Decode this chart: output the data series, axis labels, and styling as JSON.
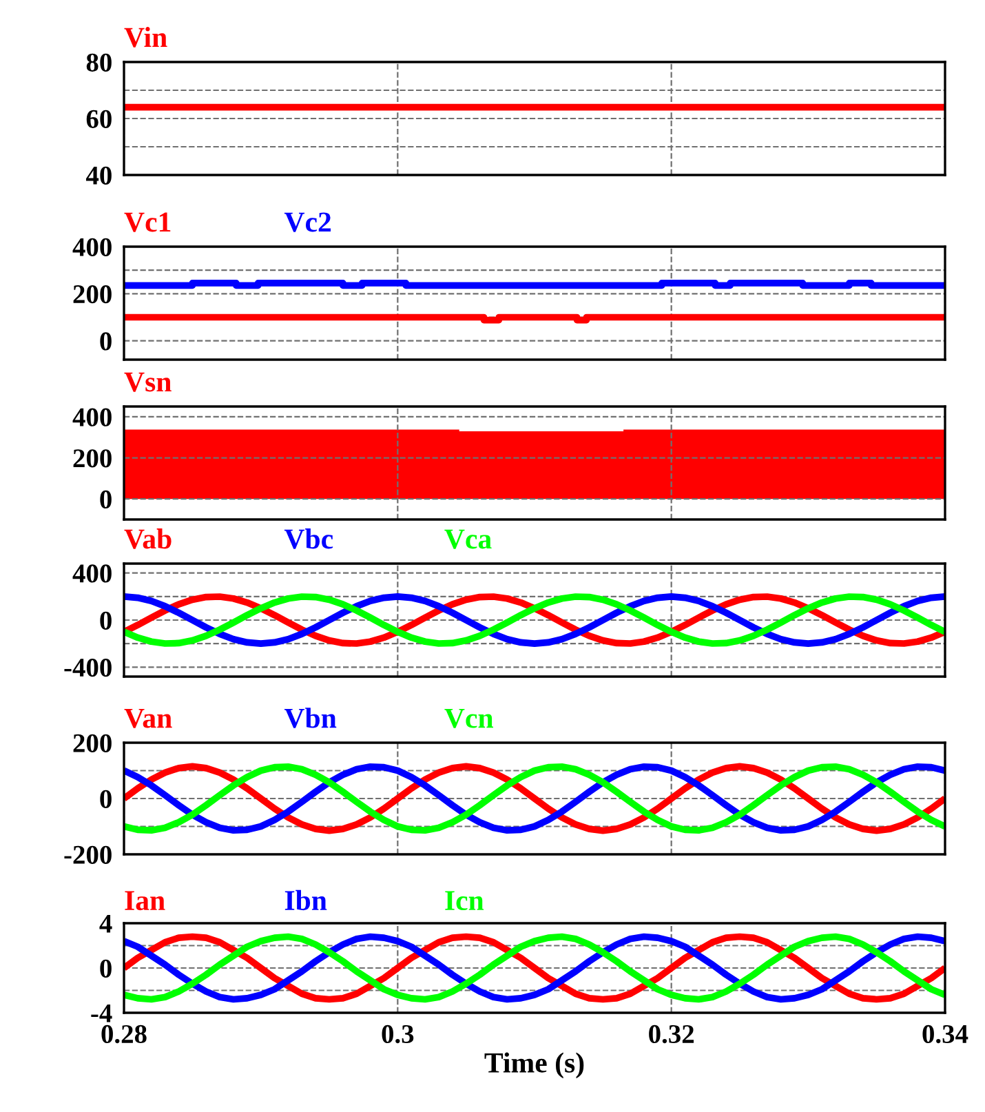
{
  "chart_data": [
    {
      "type": "line",
      "xlim": [
        0.28,
        0.34
      ],
      "xticks": [
        0.28,
        0.3,
        0.32,
        0.34
      ],
      "ylim": [
        40,
        80
      ],
      "yticks": [
        40,
        {
          "value": 50,
          "label": null
        },
        60,
        {
          "value": 70,
          "label": null
        },
        80
      ],
      "grid": true,
      "legend": "top left",
      "tick_labels": "y",
      "series": [
        {
          "name": "Vin",
          "color": "#ff0000",
          "x": [
            0.28,
            0.34
          ],
          "values": [
            64,
            64
          ]
        }
      ]
    },
    {
      "type": "line",
      "xlim": [
        0.28,
        0.34
      ],
      "xticks": [
        0.28,
        0.3,
        0.32,
        0.34
      ],
      "ylim": [
        -80,
        400
      ],
      "yticks": [
        0,
        {
          "value": 100,
          "label": null
        },
        200,
        {
          "value": 300,
          "label": null
        },
        400
      ],
      "grid": true,
      "legend": "top left",
      "tick_labels": "y",
      "series": [
        {
          "name": "Vc1",
          "color": "#ff0000",
          "x": [
            0.28,
            0.3063,
            0.3063,
            0.3074,
            0.3074,
            0.3131,
            0.3131,
            0.3138,
            0.3138,
            0.34
          ],
          "values": [
            100,
            100,
            88,
            88,
            100,
            100,
            88,
            88,
            100,
            100
          ]
        },
        {
          "name": "Vc2",
          "color": "#0000ff",
          "x": [
            0.28,
            0.285,
            0.285,
            0.2882,
            0.2882,
            0.2898,
            0.2898,
            0.296,
            0.296,
            0.2974,
            0.2974,
            0.3006,
            0.3006,
            0.3193,
            0.3193,
            0.3232,
            0.3232,
            0.3243,
            0.3243,
            0.3296,
            0.3296,
            0.333,
            0.333,
            0.3346,
            0.3346,
            0.34
          ],
          "values": [
            235,
            235,
            245,
            245,
            235,
            235,
            245,
            245,
            235,
            235,
            245,
            245,
            235,
            235,
            245,
            245,
            235,
            235,
            245,
            245,
            235,
            235,
            245,
            245,
            235,
            235
          ]
        }
      ]
    },
    {
      "type": "area",
      "xlim": [
        0.28,
        0.34
      ],
      "xticks": [
        0.28,
        0.3,
        0.32,
        0.34
      ],
      "ylim": [
        -100,
        450
      ],
      "yticks": [
        0,
        200,
        400
      ],
      "grid": true,
      "legend": "top left",
      "tick_labels": "y",
      "series": [
        {
          "name": "Vsn",
          "color": "#ff0000",
          "x": [
            0.28,
            0.3045,
            0.3045,
            0.3165,
            0.3165,
            0.34
          ],
          "values": [
            338,
            338,
            329,
            329,
            338,
            338
          ]
        }
      ]
    },
    {
      "type": "line",
      "xlim": [
        0.28,
        0.34
      ],
      "xticks": [
        0.28,
        0.3,
        0.32,
        0.34
      ],
      "ylim": [
        -480,
        480
      ],
      "yticks": [
        -400,
        {
          "value": -200,
          "label": null
        },
        0,
        {
          "value": 200,
          "label": null
        },
        400
      ],
      "grid": true,
      "legend": "top left",
      "tick_labels": "y",
      "x": [
        0.28,
        0.281,
        0.282,
        0.283,
        0.284,
        0.285,
        0.286,
        0.287,
        0.288,
        0.289,
        0.29,
        0.291,
        0.292,
        0.293,
        0.294,
        0.295,
        0.296,
        0.297,
        0.298,
        0.299,
        0.3,
        0.301,
        0.302,
        0.303,
        0.304,
        0.305,
        0.306,
        0.307,
        0.308,
        0.309,
        0.31,
        0.311,
        0.312,
        0.313,
        0.314,
        0.315,
        0.316,
        0.317,
        0.318,
        0.319,
        0.32,
        0.321,
        0.322,
        0.323,
        0.324,
        0.325,
        0.326,
        0.327,
        0.328,
        0.329,
        0.33,
        0.331,
        0.332,
        0.333,
        0.334,
        0.335,
        0.336,
        0.337,
        0.338,
        0.339,
        0.34
      ],
      "series": [
        {
          "name": "Vab",
          "color": "#ff0000",
          "values": [
            -100,
            -42,
            21,
            81,
            134,
            173,
            196,
            199,
            183,
            149,
            100,
            42,
            -21,
            -81,
            -134,
            -173,
            -196,
            -199,
            -183,
            -149,
            -100,
            -42,
            21,
            81,
            134,
            173,
            196,
            199,
            183,
            149,
            100,
            42,
            -21,
            -81,
            -134,
            -173,
            -196,
            -199,
            -183,
            -149,
            -100,
            -42,
            21,
            81,
            134,
            173,
            196,
            199,
            183,
            149,
            100,
            42,
            -21,
            -81,
            -134,
            -173,
            -196,
            -199,
            -183,
            -149,
            -100
          ]
        },
        {
          "name": "Vbc",
          "color": "#0000ff",
          "values": [
            200,
            190,
            162,
            118,
            62,
            0,
            -62,
            -118,
            -162,
            -190,
            -200,
            -190,
            -162,
            -118,
            -62,
            0,
            62,
            118,
            162,
            190,
            200,
            190,
            162,
            118,
            62,
            0,
            -62,
            -118,
            -162,
            -190,
            -200,
            -190,
            -162,
            -118,
            -62,
            0,
            62,
            118,
            162,
            190,
            200,
            190,
            162,
            118,
            62,
            0,
            -62,
            -118,
            -162,
            -190,
            -200,
            -190,
            -162,
            -118,
            -62,
            0,
            62,
            118,
            162,
            190,
            200
          ]
        },
        {
          "name": "Vca",
          "color": "#00ff00",
          "values": [
            -100,
            -149,
            -183,
            -199,
            -196,
            -173,
            -134,
            -81,
            -21,
            42,
            100,
            149,
            183,
            199,
            196,
            173,
            134,
            81,
            21,
            -42,
            -100,
            -149,
            -183,
            -199,
            -196,
            -173,
            -134,
            -81,
            -21,
            42,
            100,
            149,
            183,
            199,
            196,
            173,
            134,
            81,
            21,
            -42,
            -100,
            -149,
            -183,
            -199,
            -196,
            -173,
            -134,
            -81,
            -21,
            42,
            100,
            149,
            183,
            199,
            196,
            173,
            134,
            81,
            21,
            -42,
            -100
          ]
        }
      ]
    },
    {
      "type": "line",
      "xlim": [
        0.28,
        0.34
      ],
      "xticks": [
        0.28,
        0.3,
        0.32,
        0.34
      ],
      "ylim": [
        -200,
        200
      ],
      "yticks": [
        -200,
        {
          "value": -100,
          "label": null
        },
        0,
        {
          "value": 100,
          "label": null
        },
        200
      ],
      "grid": true,
      "legend": "top left",
      "tick_labels": "y",
      "x": [
        0.28,
        0.281,
        0.282,
        0.283,
        0.284,
        0.285,
        0.286,
        0.287,
        0.288,
        0.289,
        0.29,
        0.291,
        0.292,
        0.293,
        0.294,
        0.295,
        0.296,
        0.297,
        0.298,
        0.299,
        0.3,
        0.301,
        0.302,
        0.303,
        0.304,
        0.305,
        0.306,
        0.307,
        0.308,
        0.309,
        0.31,
        0.311,
        0.312,
        0.313,
        0.314,
        0.315,
        0.316,
        0.317,
        0.318,
        0.319,
        0.32,
        0.321,
        0.322,
        0.323,
        0.324,
        0.325,
        0.326,
        0.327,
        0.328,
        0.329,
        0.33,
        0.331,
        0.332,
        0.333,
        0.334,
        0.335,
        0.336,
        0.337,
        0.338,
        0.339,
        0.34
      ],
      "series": [
        {
          "name": "Van",
          "color": "#ff0000",
          "values": [
            0,
            36,
            68,
            93,
            109,
            115,
            109,
            93,
            68,
            36,
            0,
            -36,
            -68,
            -93,
            -109,
            -115,
            -109,
            -93,
            -68,
            -36,
            0,
            36,
            68,
            93,
            109,
            115,
            109,
            93,
            68,
            36,
            0,
            -36,
            -68,
            -93,
            -109,
            -115,
            -109,
            -93,
            -68,
            -36,
            0,
            36,
            68,
            93,
            109,
            115,
            109,
            93,
            68,
            36,
            0,
            -36,
            -68,
            -93,
            -109,
            -115,
            -109,
            -93,
            -68,
            -36,
            0
          ]
        },
        {
          "name": "Vbn",
          "color": "#0000ff",
          "values": [
            100,
            77,
            47,
            12,
            -24,
            -58,
            -85,
            -105,
            -114,
            -112,
            -100,
            -77,
            -47,
            -12,
            24,
            58,
            85,
            105,
            114,
            112,
            100,
            77,
            47,
            12,
            -24,
            -58,
            -85,
            -105,
            -114,
            -112,
            -100,
            -77,
            -47,
            -12,
            24,
            58,
            85,
            105,
            114,
            112,
            100,
            77,
            47,
            12,
            -24,
            -58,
            -85,
            -105,
            -114,
            -112,
            -100,
            -77,
            -47,
            -12,
            24,
            58,
            85,
            105,
            114,
            112,
            100
          ]
        },
        {
          "name": "Vcn",
          "color": "#00ff00",
          "values": [
            -100,
            -112,
            -114,
            -105,
            -85,
            -58,
            -24,
            12,
            47,
            77,
            100,
            112,
            114,
            105,
            85,
            58,
            24,
            -12,
            -47,
            -77,
            -100,
            -112,
            -114,
            -105,
            -85,
            -58,
            -24,
            12,
            47,
            77,
            100,
            112,
            114,
            105,
            85,
            58,
            24,
            -12,
            -47,
            -77,
            -100,
            -112,
            -114,
            -105,
            -85,
            -58,
            -24,
            12,
            47,
            77,
            100,
            112,
            114,
            105,
            85,
            58,
            24,
            -12,
            -47,
            -77,
            -100
          ]
        }
      ]
    },
    {
      "type": "line",
      "xlim": [
        0.28,
        0.34
      ],
      "xticks": [
        0.28,
        0.3,
        0.32,
        0.34
      ],
      "ylim": [
        -4,
        4
      ],
      "yticks": [
        -4,
        {
          "value": -2,
          "label": null
        },
        0,
        {
          "value": 2,
          "label": null
        },
        4
      ],
      "grid": true,
      "legend": "top left",
      "xlabel": "Time (s)",
      "x": [
        0.28,
        0.281,
        0.282,
        0.283,
        0.284,
        0.285,
        0.286,
        0.287,
        0.288,
        0.289,
        0.29,
        0.291,
        0.292,
        0.293,
        0.294,
        0.295,
        0.296,
        0.297,
        0.298,
        0.299,
        0.3,
        0.301,
        0.302,
        0.303,
        0.304,
        0.305,
        0.306,
        0.307,
        0.308,
        0.309,
        0.31,
        0.311,
        0.312,
        0.313,
        0.314,
        0.315,
        0.316,
        0.317,
        0.318,
        0.319,
        0.32,
        0.321,
        0.322,
        0.323,
        0.324,
        0.325,
        0.326,
        0.327,
        0.328,
        0.329,
        0.33,
        0.331,
        0.332,
        0.333,
        0.334,
        0.335,
        0.336,
        0.337,
        0.338,
        0.339,
        0.34
      ],
      "series": [
        {
          "name": "Ian",
          "color": "#ff0000",
          "values": [
            0,
            0.9,
            1.6,
            2.3,
            2.7,
            2.8,
            2.7,
            2.3,
            1.6,
            0.9,
            0,
            -0.9,
            -1.6,
            -2.3,
            -2.7,
            -2.8,
            -2.7,
            -2.3,
            -1.6,
            -0.9,
            0,
            0.9,
            1.6,
            2.3,
            2.7,
            2.8,
            2.7,
            2.3,
            1.6,
            0.9,
            0,
            -0.9,
            -1.6,
            -2.3,
            -2.7,
            -2.8,
            -2.7,
            -2.3,
            -1.6,
            -0.9,
            0,
            0.9,
            1.6,
            2.3,
            2.7,
            2.8,
            2.7,
            2.3,
            1.6,
            0.9,
            0,
            -0.9,
            -1.6,
            -2.3,
            -2.7,
            -2.8,
            -2.7,
            -2.3,
            -1.6,
            -0.9,
            0
          ]
        },
        {
          "name": "Ibn",
          "color": "#0000ff",
          "values": [
            2.4,
            1.9,
            1.1,
            0.3,
            -0.6,
            -1.4,
            -2.1,
            -2.6,
            -2.8,
            -2.7,
            -2.4,
            -1.9,
            -1.1,
            -0.3,
            0.6,
            1.4,
            2.1,
            2.6,
            2.8,
            2.7,
            2.4,
            1.9,
            1.1,
            0.3,
            -0.6,
            -1.4,
            -2.1,
            -2.6,
            -2.8,
            -2.7,
            -2.4,
            -1.9,
            -1.1,
            -0.3,
            0.6,
            1.4,
            2.1,
            2.6,
            2.8,
            2.7,
            2.4,
            1.9,
            1.1,
            0.3,
            -0.6,
            -1.4,
            -2.1,
            -2.6,
            -2.8,
            -2.7,
            -2.4,
            -1.9,
            -1.1,
            -0.3,
            0.6,
            1.4,
            2.1,
            2.6,
            2.8,
            2.7,
            2.4
          ]
        },
        {
          "name": "Icn",
          "color": "#00ff00",
          "values": [
            -2.4,
            -2.7,
            -2.8,
            -2.6,
            -2.1,
            -1.4,
            -0.6,
            0.3,
            1.1,
            1.9,
            2.4,
            2.7,
            2.8,
            2.6,
            2.1,
            1.4,
            0.6,
            -0.3,
            -1.1,
            -1.9,
            -2.4,
            -2.7,
            -2.8,
            -2.6,
            -2.1,
            -1.4,
            -0.6,
            0.3,
            1.1,
            1.9,
            2.4,
            2.7,
            2.8,
            2.6,
            2.1,
            1.4,
            0.6,
            -0.3,
            -1.1,
            -1.9,
            -2.4,
            -2.7,
            -2.8,
            -2.6,
            -2.1,
            -1.4,
            -0.6,
            0.3,
            1.1,
            1.9,
            2.4,
            2.7,
            2.8,
            2.6,
            2.1,
            1.4,
            0.6,
            -0.3,
            -1.1,
            -1.9,
            -2.4
          ]
        }
      ]
    }
  ]
}
